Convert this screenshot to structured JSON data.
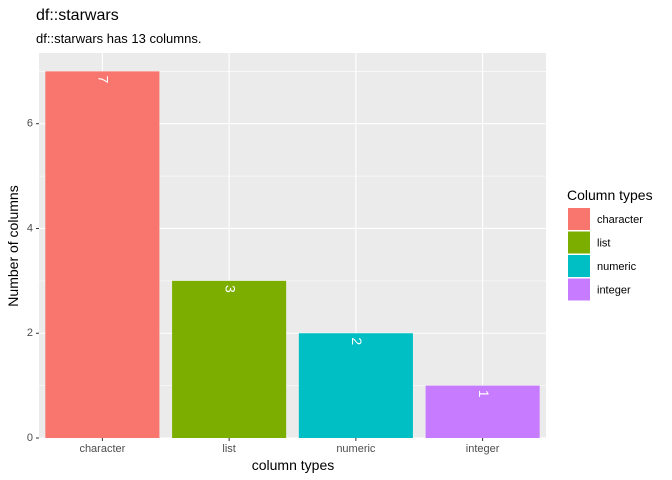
{
  "chart_data": {
    "type": "bar",
    "title": "df::starwars",
    "subtitle": "df::starwars has 13 columns.",
    "xlabel": "column types",
    "ylabel": "Number of columns",
    "categories": [
      "character",
      "list",
      "numeric",
      "integer"
    ],
    "values": [
      7,
      3,
      2,
      1
    ],
    "colors": [
      "#F8766D",
      "#7CAE00",
      "#00BFC4",
      "#C77CFF"
    ],
    "ylim": [
      0,
      7.35
    ],
    "yticks": [
      0,
      2,
      4,
      6
    ],
    "grid": true,
    "legend": {
      "title": "Column types",
      "position": "right",
      "entries": [
        "character",
        "list",
        "numeric",
        "integer"
      ]
    }
  }
}
